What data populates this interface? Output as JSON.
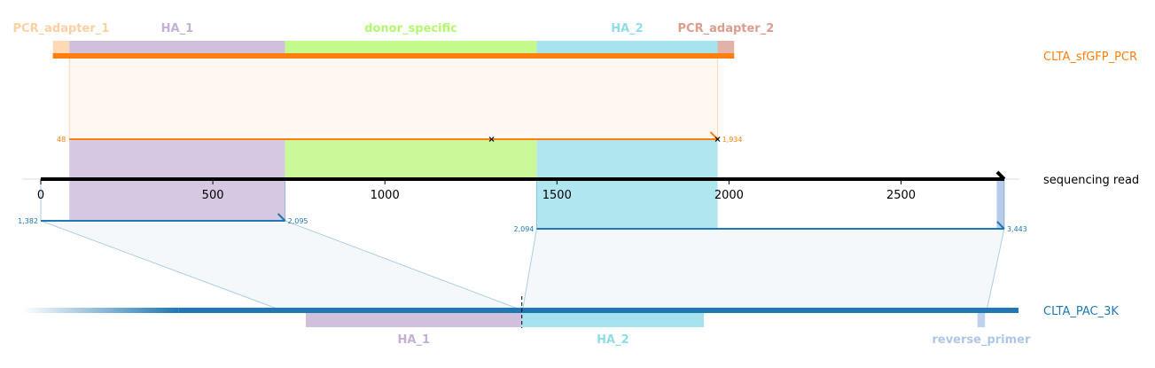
{
  "colors": {
    "pcr_adapter_1": "#fdd0a2",
    "ha_1": "#c5b0d5",
    "donor_specific": "#b5f76e",
    "ha_2": "#8fdcea",
    "pcr_adapter_2": "#dc9d8f",
    "reverse_primer": "#aec7e8",
    "amplicon_track": "#ff7f0e",
    "target_track": "#1f77b4",
    "read_track": "#000000"
  },
  "amplicon": {
    "label": "CLTA_sfGFP_PCR",
    "features": [
      {
        "name": "PCR_adapter_1",
        "label": "PCR_adapter_1",
        "start": 35,
        "end": 83,
        "color_key": "pcr_adapter_1"
      },
      {
        "name": "HA_1",
        "label": "HA_1",
        "start": 83,
        "end": 710,
        "color_key": "ha_1"
      },
      {
        "name": "donor_specific",
        "label": "donor_specific",
        "start": 710,
        "end": 1441,
        "color_key": "donor_specific"
      },
      {
        "name": "HA_2",
        "label": "HA_2",
        "start": 1441,
        "end": 1967,
        "color_key": "ha_2"
      },
      {
        "name": "PCR_adapter_2",
        "label": "PCR_adapter_2",
        "start": 1967,
        "end": 2015,
        "color_key": "pcr_adapter_2"
      }
    ],
    "track_start": 35,
    "track_end": 2015
  },
  "read": {
    "label": "sequencing read",
    "length": 2800,
    "axis_ticks": [
      0,
      500,
      1000,
      1500,
      2000,
      2500
    ],
    "tick_labels": [
      "0",
      "500",
      "1000",
      "1500",
      "2000",
      "2500"
    ]
  },
  "amplicon_alignment": {
    "read_start": 83,
    "read_end": 1967,
    "ref_start_label": "48",
    "ref_end_label": "1,934",
    "mismatches_read": [
      1310,
      1967
    ]
  },
  "target_alignments": [
    {
      "read_start": 0,
      "read_end": 710,
      "start_label": "1,382",
      "end_label": "2,095",
      "target_start": 700,
      "target_end": 1400
    },
    {
      "read_start": 1441,
      "read_end": 2800,
      "start_label": "2,094",
      "end_label": "3,443",
      "target_start": 1400,
      "target_end": 2749
    }
  ],
  "target": {
    "label": "CLTA_PAC_3K",
    "features": [
      {
        "name": "HA_1",
        "label": "HA_1",
        "start": 770,
        "end": 1398,
        "color_key": "ha_1"
      },
      {
        "name": "HA_2",
        "label": "HA_2",
        "start": 1398,
        "end": 1927,
        "color_key": "ha_2"
      },
      {
        "name": "reverse_primer",
        "label": "reverse_primer",
        "start": 2722,
        "end": 2744,
        "color_key": "reverse_primer"
      }
    ],
    "cut_site": 1398,
    "track_start": -50,
    "track_end": 2850,
    "fade_until": 400
  },
  "read_highlights": [
    {
      "start": 2778,
      "end": 2800,
      "color_key": "reverse_primer"
    }
  ]
}
